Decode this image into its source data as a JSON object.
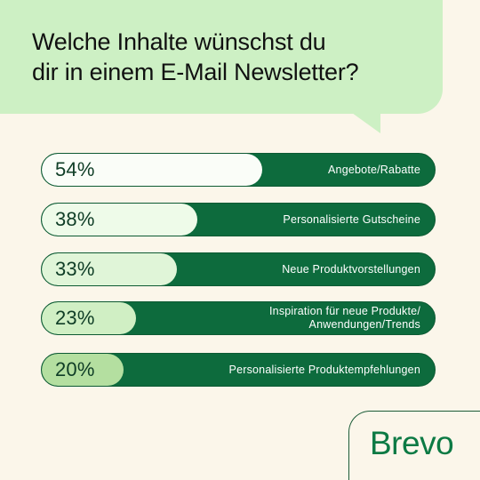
{
  "title_lines": [
    "Welche Inhalte wünschst du",
    "dir in einem E-Mail Newsletter?"
  ],
  "brand": "Brevo",
  "colors": {
    "background": "#fbf6ea",
    "bubble": "#cdf0c4",
    "bar_track": "#0d6b3d",
    "brand": "#0c7a44"
  },
  "chart_data": {
    "type": "bar",
    "orientation": "horizontal",
    "categories": [
      "Angebote/Rabatte",
      "Personalisierte Gutscheine",
      "Neue Produktvorstellungen",
      "Inspiration für neue Produkte/\nAnwendungen/Trends",
      "Personalisierte Produktempfehlungen"
    ],
    "values": [
      54,
      38,
      33,
      23,
      20
    ],
    "value_labels": [
      "54%",
      "38%",
      "33%",
      "23%",
      "20%"
    ],
    "fill_colors": [
      "#fafdf8",
      "#eefbe9",
      "#e0f5d8",
      "#d0efc4",
      "#b4dfa0"
    ],
    "xlim": [
      0,
      100
    ],
    "unit": "%",
    "grid": false
  }
}
